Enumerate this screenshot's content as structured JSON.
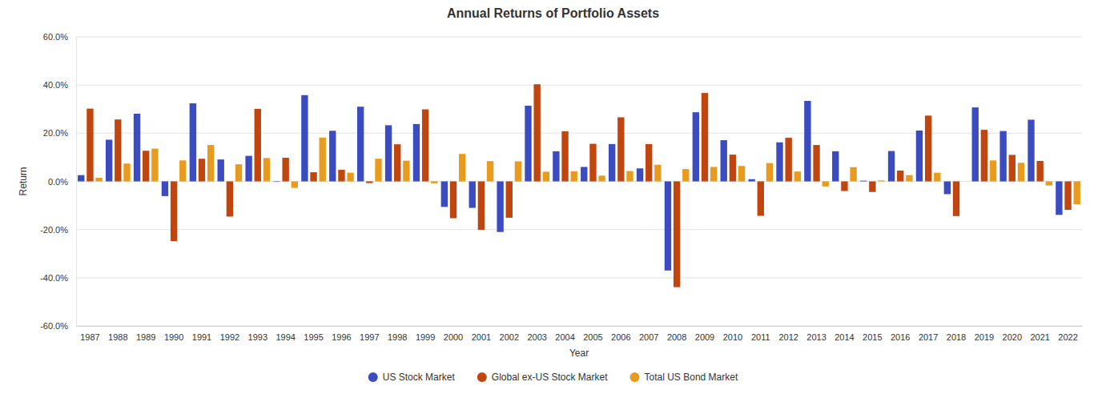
{
  "chart_data": {
    "type": "bar",
    "title": "Annual Returns of Portfolio Assets",
    "x_label": "Year",
    "y_label": "Return",
    "categories": [
      "1987",
      "1988",
      "1989",
      "1990",
      "1991",
      "1992",
      "1993",
      "1994",
      "1995",
      "1996",
      "1997",
      "1998",
      "1999",
      "2000",
      "2001",
      "2002",
      "2003",
      "2004",
      "2005",
      "2006",
      "2007",
      "2008",
      "2009",
      "2010",
      "2011",
      "2012",
      "2013",
      "2014",
      "2015",
      "2016",
      "2017",
      "2018",
      "2019",
      "2020",
      "2021",
      "2022"
    ],
    "series": [
      {
        "name": "US Stock Market",
        "color": "#3b4cc0",
        "values": [
          2.6,
          17.3,
          28.1,
          -6.1,
          32.4,
          9.1,
          10.6,
          -0.2,
          35.8,
          21.0,
          31.0,
          23.3,
          23.8,
          -10.6,
          -11.0,
          -21.0,
          31.4,
          12.5,
          6.0,
          15.5,
          5.4,
          -37.0,
          28.7,
          17.1,
          0.9,
          16.2,
          33.4,
          12.5,
          0.3,
          12.6,
          21.1,
          -5.3,
          30.7,
          20.9,
          25.6,
          -13.9
        ]
      },
      {
        "name": "Global ex-US Stock Market",
        "color": "#c0450f",
        "values": [
          30.2,
          25.7,
          12.7,
          -24.8,
          9.4,
          -14.6,
          30.1,
          9.8,
          3.8,
          4.8,
          -0.7,
          15.4,
          29.9,
          -15.3,
          -20.1,
          -15.1,
          40.3,
          20.8,
          15.6,
          26.6,
          15.5,
          -43.9,
          36.7,
          11.1,
          -14.3,
          18.1,
          15.1,
          -4.0,
          -4.4,
          4.5,
          27.3,
          -14.4,
          21.4,
          11.0,
          8.5,
          -11.8
        ]
      },
      {
        "name": "Total US Bond Market",
        "color": "#e89b1c",
        "values": [
          1.5,
          7.4,
          13.6,
          8.7,
          15.1,
          7.1,
          9.7,
          -2.7,
          18.2,
          3.6,
          9.4,
          8.6,
          -0.8,
          11.4,
          8.4,
          8.3,
          4.0,
          4.2,
          2.4,
          4.3,
          6.9,
          5.1,
          6.0,
          6.4,
          7.6,
          4.1,
          -2.1,
          5.9,
          0.4,
          2.6,
          3.6,
          0.0,
          8.7,
          7.7,
          -1.7,
          -9.5
        ]
      }
    ],
    "ylim": [
      -60,
      60
    ],
    "yticks": [
      {
        "value": -60,
        "label": "-60.0%"
      },
      {
        "value": -40,
        "label": "-40.0%"
      },
      {
        "value": -20,
        "label": "-20.0%"
      },
      {
        "value": 0,
        "label": "0.0%"
      },
      {
        "value": 20,
        "label": "20.0%"
      },
      {
        "value": 40,
        "label": "40.0%"
      },
      {
        "value": 60,
        "label": "60.0%"
      }
    ],
    "grid": true,
    "legend": "bottom"
  }
}
